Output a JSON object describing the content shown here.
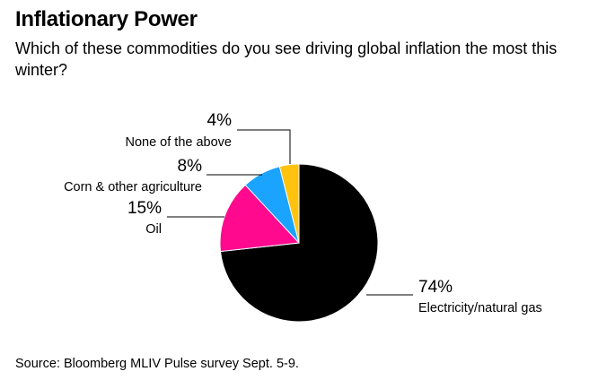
{
  "header": {
    "title": "Inflationary Power",
    "subtitle": "Which of these commodities do you see driving global inflation the most this winter?"
  },
  "footer": {
    "source": "Source: Bloomberg MLIV Pulse survey Sept. 5-9."
  },
  "chart_data": {
    "type": "pie",
    "title": "Inflationary Power",
    "slices": [
      {
        "label": "Electricity/natural gas",
        "value": 74,
        "value_label": "74%",
        "color": "#000000"
      },
      {
        "label": "Oil",
        "value": 15,
        "value_label": "15%",
        "color": "#ff0a8f"
      },
      {
        "label": "Corn & other agriculture",
        "value": 8,
        "value_label": "8%",
        "color": "#1aa3ff"
      },
      {
        "label": "None of the above",
        "value": 4,
        "value_label": "4%",
        "color": "#ffc20e"
      }
    ]
  }
}
